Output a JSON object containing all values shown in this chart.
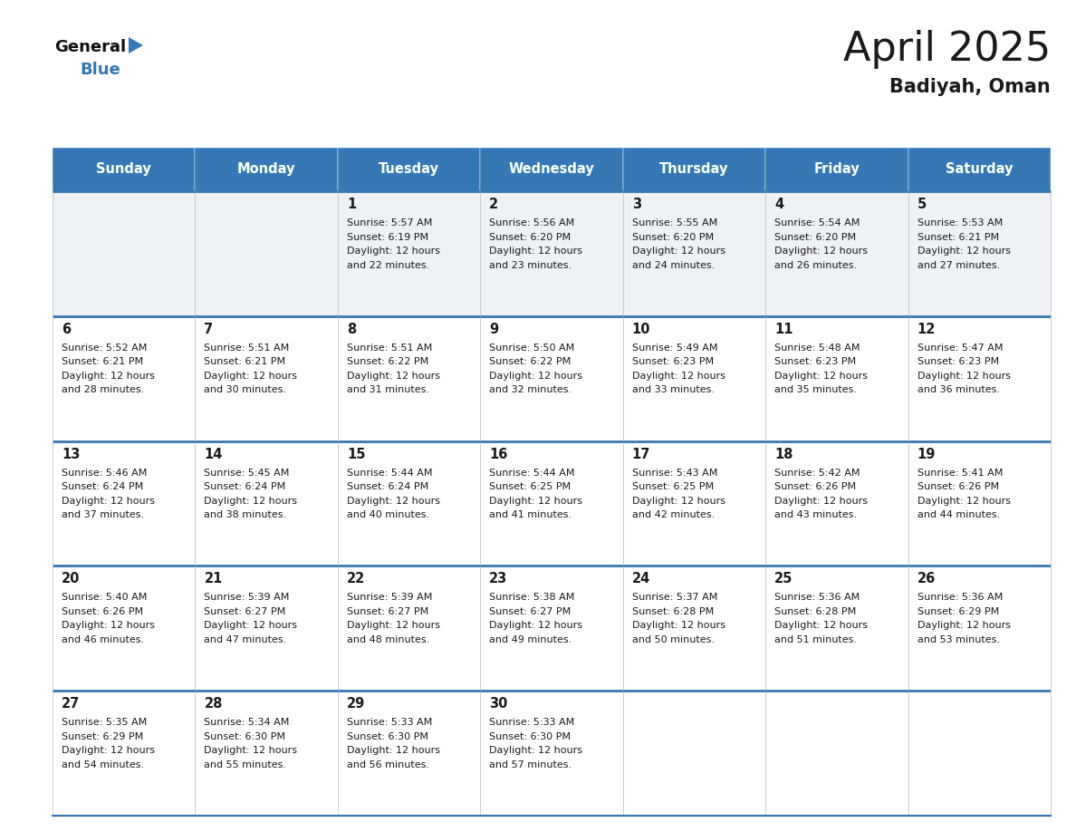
{
  "title": "April 2025",
  "subtitle": "Badiyah, Oman",
  "header_bg_color": "#3578b5",
  "header_text_color": "#ffffff",
  "row0_bg": "#eef1f5",
  "row_bg": "#ffffff",
  "cell_line_color": "#3578b5",
  "day_headers": [
    "Sunday",
    "Monday",
    "Tuesday",
    "Wednesday",
    "Thursday",
    "Friday",
    "Saturday"
  ],
  "days": [
    {
      "day": 1,
      "col": 2,
      "row": 0,
      "sunrise": "5:57 AM",
      "sunset": "6:19 PM",
      "daylight_mins": "22 minutes."
    },
    {
      "day": 2,
      "col": 3,
      "row": 0,
      "sunrise": "5:56 AM",
      "sunset": "6:20 PM",
      "daylight_mins": "23 minutes."
    },
    {
      "day": 3,
      "col": 4,
      "row": 0,
      "sunrise": "5:55 AM",
      "sunset": "6:20 PM",
      "daylight_mins": "24 minutes."
    },
    {
      "day": 4,
      "col": 5,
      "row": 0,
      "sunrise": "5:54 AM",
      "sunset": "6:20 PM",
      "daylight_mins": "26 minutes."
    },
    {
      "day": 5,
      "col": 6,
      "row": 0,
      "sunrise": "5:53 AM",
      "sunset": "6:21 PM",
      "daylight_mins": "27 minutes."
    },
    {
      "day": 6,
      "col": 0,
      "row": 1,
      "sunrise": "5:52 AM",
      "sunset": "6:21 PM",
      "daylight_mins": "28 minutes."
    },
    {
      "day": 7,
      "col": 1,
      "row": 1,
      "sunrise": "5:51 AM",
      "sunset": "6:21 PM",
      "daylight_mins": "30 minutes."
    },
    {
      "day": 8,
      "col": 2,
      "row": 1,
      "sunrise": "5:51 AM",
      "sunset": "6:22 PM",
      "daylight_mins": "31 minutes."
    },
    {
      "day": 9,
      "col": 3,
      "row": 1,
      "sunrise": "5:50 AM",
      "sunset": "6:22 PM",
      "daylight_mins": "32 minutes."
    },
    {
      "day": 10,
      "col": 4,
      "row": 1,
      "sunrise": "5:49 AM",
      "sunset": "6:23 PM",
      "daylight_mins": "33 minutes."
    },
    {
      "day": 11,
      "col": 5,
      "row": 1,
      "sunrise": "5:48 AM",
      "sunset": "6:23 PM",
      "daylight_mins": "35 minutes."
    },
    {
      "day": 12,
      "col": 6,
      "row": 1,
      "sunrise": "5:47 AM",
      "sunset": "6:23 PM",
      "daylight_mins": "36 minutes."
    },
    {
      "day": 13,
      "col": 0,
      "row": 2,
      "sunrise": "5:46 AM",
      "sunset": "6:24 PM",
      "daylight_mins": "37 minutes."
    },
    {
      "day": 14,
      "col": 1,
      "row": 2,
      "sunrise": "5:45 AM",
      "sunset": "6:24 PM",
      "daylight_mins": "38 minutes."
    },
    {
      "day": 15,
      "col": 2,
      "row": 2,
      "sunrise": "5:44 AM",
      "sunset": "6:24 PM",
      "daylight_mins": "40 minutes."
    },
    {
      "day": 16,
      "col": 3,
      "row": 2,
      "sunrise": "5:44 AM",
      "sunset": "6:25 PM",
      "daylight_mins": "41 minutes."
    },
    {
      "day": 17,
      "col": 4,
      "row": 2,
      "sunrise": "5:43 AM",
      "sunset": "6:25 PM",
      "daylight_mins": "42 minutes."
    },
    {
      "day": 18,
      "col": 5,
      "row": 2,
      "sunrise": "5:42 AM",
      "sunset": "6:26 PM",
      "daylight_mins": "43 minutes."
    },
    {
      "day": 19,
      "col": 6,
      "row": 2,
      "sunrise": "5:41 AM",
      "sunset": "6:26 PM",
      "daylight_mins": "44 minutes."
    },
    {
      "day": 20,
      "col": 0,
      "row": 3,
      "sunrise": "5:40 AM",
      "sunset": "6:26 PM",
      "daylight_mins": "46 minutes."
    },
    {
      "day": 21,
      "col": 1,
      "row": 3,
      "sunrise": "5:39 AM",
      "sunset": "6:27 PM",
      "daylight_mins": "47 minutes."
    },
    {
      "day": 22,
      "col": 2,
      "row": 3,
      "sunrise": "5:39 AM",
      "sunset": "6:27 PM",
      "daylight_mins": "48 minutes."
    },
    {
      "day": 23,
      "col": 3,
      "row": 3,
      "sunrise": "5:38 AM",
      "sunset": "6:27 PM",
      "daylight_mins": "49 minutes."
    },
    {
      "day": 24,
      "col": 4,
      "row": 3,
      "sunrise": "5:37 AM",
      "sunset": "6:28 PM",
      "daylight_mins": "50 minutes."
    },
    {
      "day": 25,
      "col": 5,
      "row": 3,
      "sunrise": "5:36 AM",
      "sunset": "6:28 PM",
      "daylight_mins": "51 minutes."
    },
    {
      "day": 26,
      "col": 6,
      "row": 3,
      "sunrise": "5:36 AM",
      "sunset": "6:29 PM",
      "daylight_mins": "53 minutes."
    },
    {
      "day": 27,
      "col": 0,
      "row": 4,
      "sunrise": "5:35 AM",
      "sunset": "6:29 PM",
      "daylight_mins": "54 minutes."
    },
    {
      "day": 28,
      "col": 1,
      "row": 4,
      "sunrise": "5:34 AM",
      "sunset": "6:30 PM",
      "daylight_mins": "55 minutes."
    },
    {
      "day": 29,
      "col": 2,
      "row": 4,
      "sunrise": "5:33 AM",
      "sunset": "6:30 PM",
      "daylight_mins": "56 minutes."
    },
    {
      "day": 30,
      "col": 3,
      "row": 4,
      "sunrise": "5:33 AM",
      "sunset": "6:30 PM",
      "daylight_mins": "57 minutes."
    }
  ],
  "logo_text1": "General",
  "logo_text2": "Blue",
  "logo_triangle_color": "#3578b5",
  "text_color": "#1a1a1a"
}
